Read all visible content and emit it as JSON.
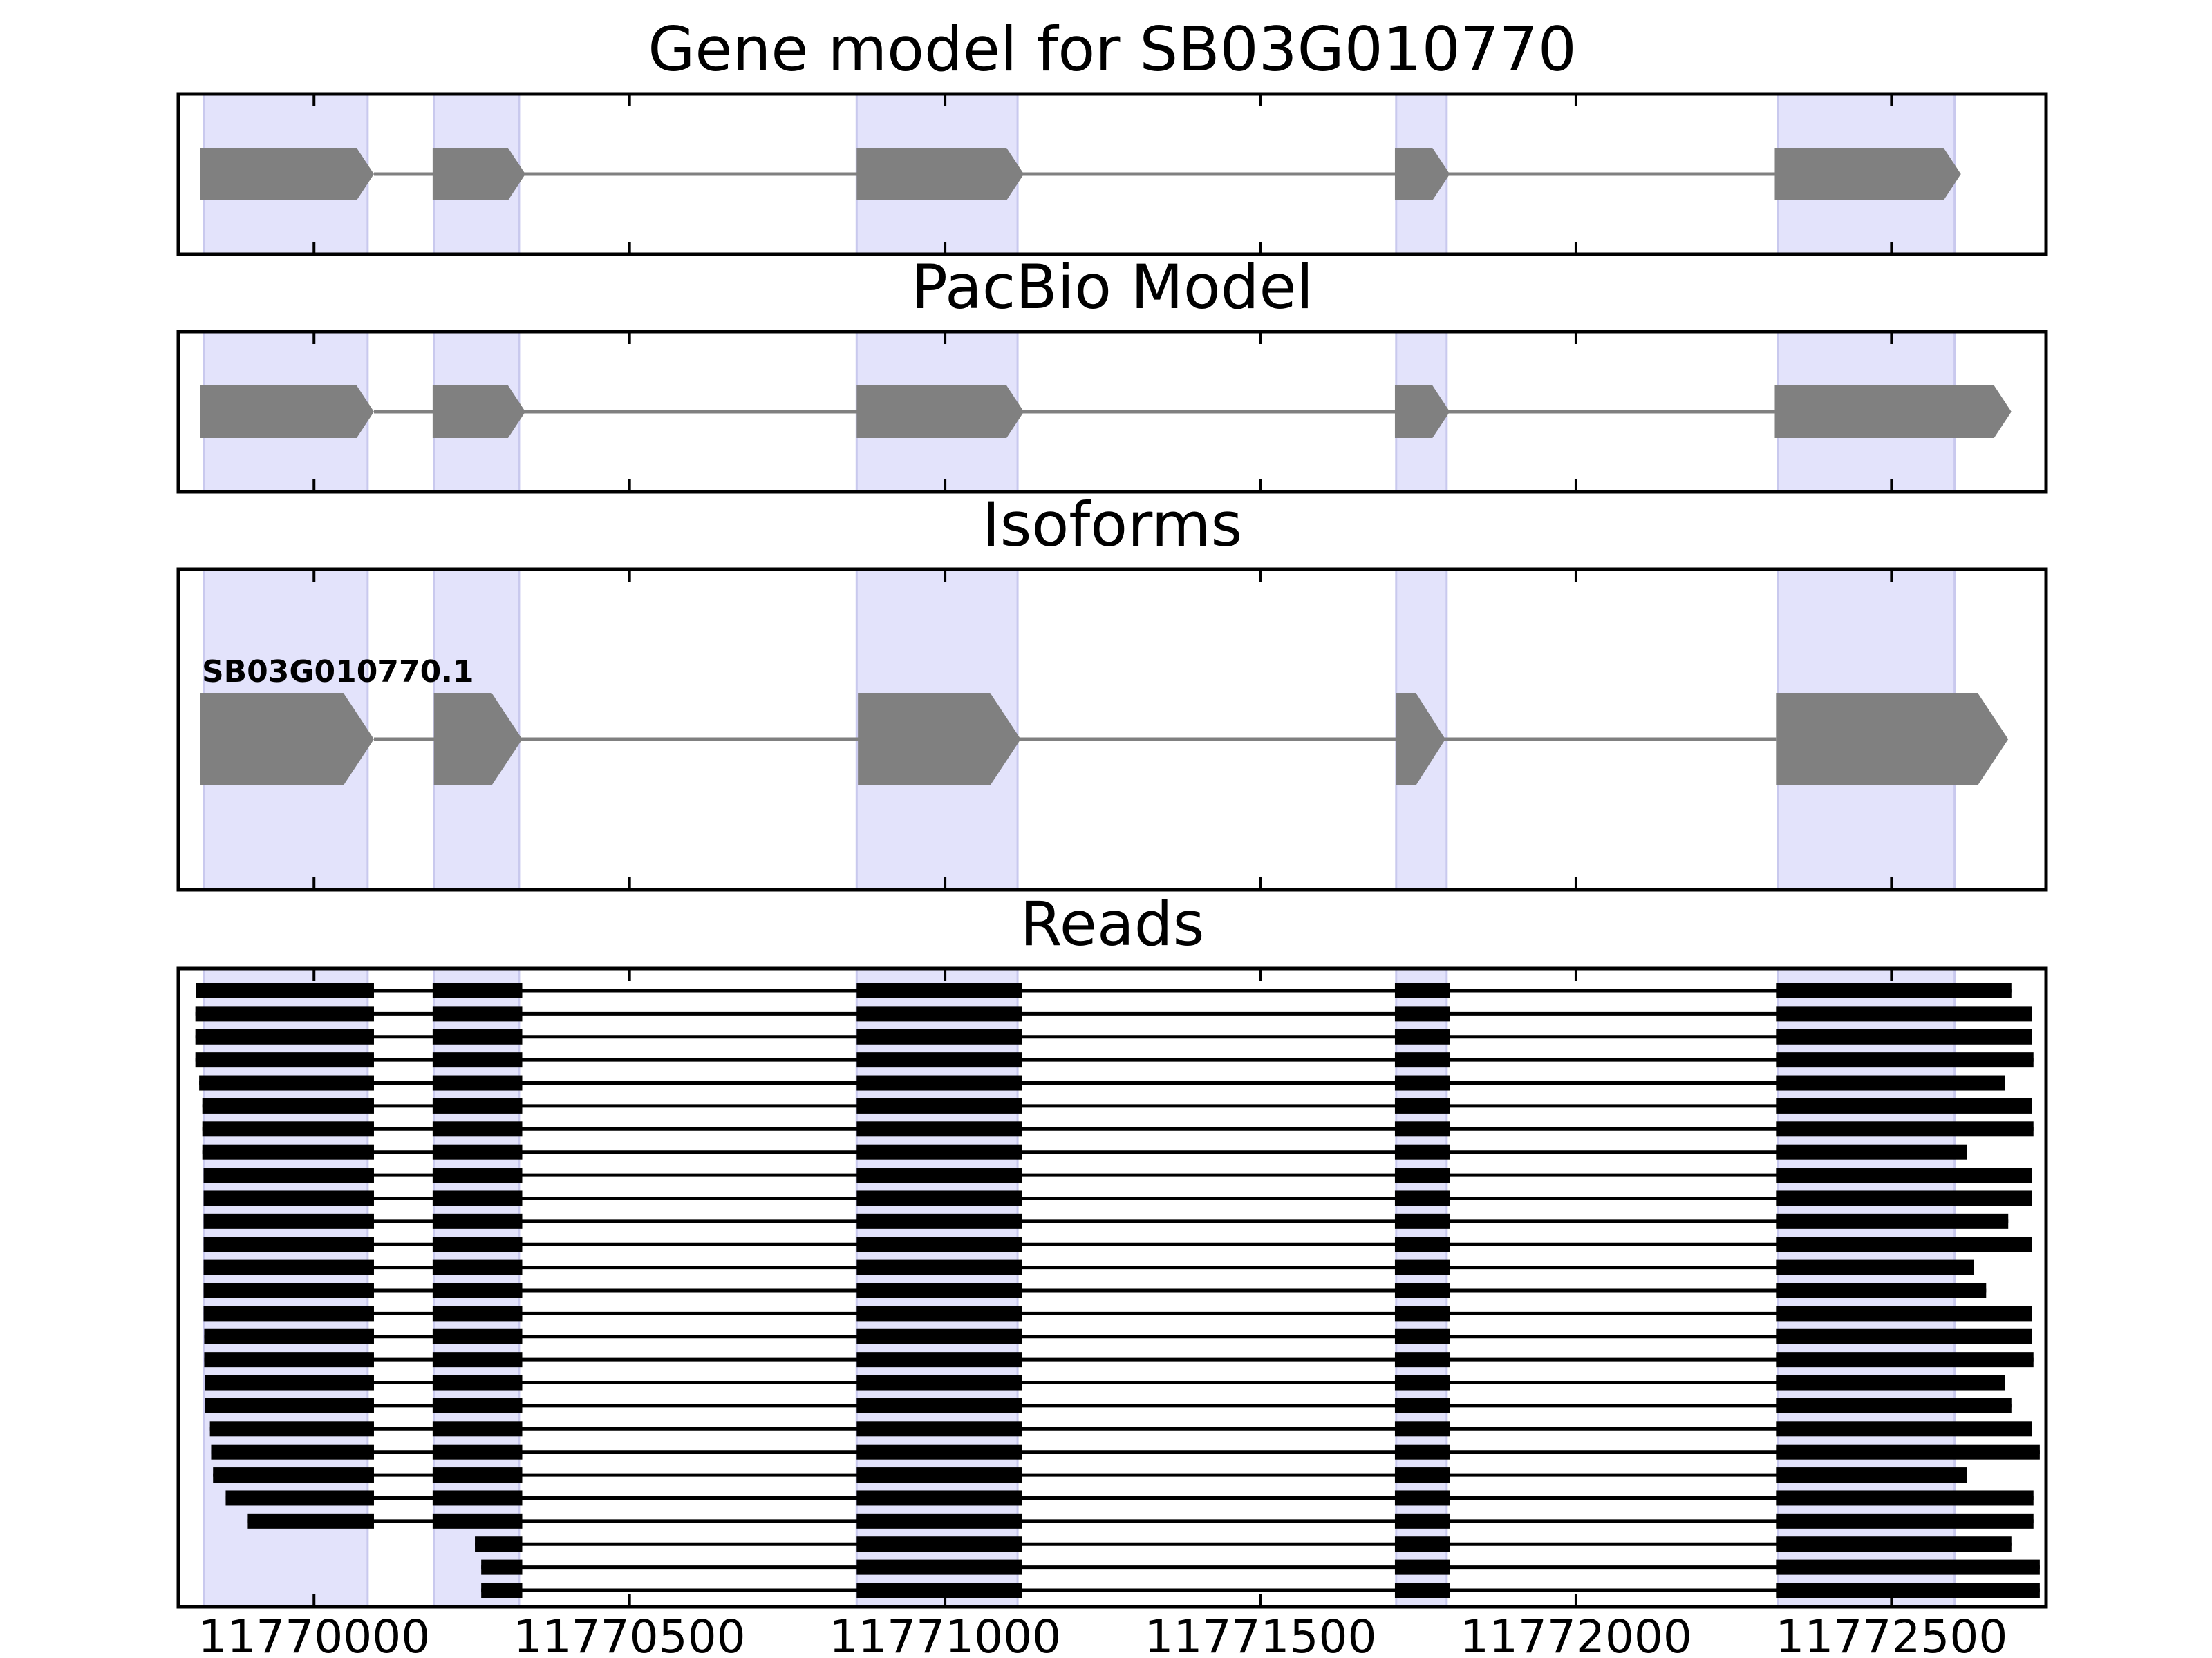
{
  "chart_data": {
    "type": "gene-structure",
    "xlim": [
      11769785,
      11772745
    ],
    "xticks": [
      11770000,
      11770500,
      11771000,
      11771500,
      11772000,
      11772500
    ],
    "x_tick_labels": [
      "11770000",
      "11770500",
      "11771000",
      "11771500",
      "11772000",
      "11772500"
    ],
    "highlight_color": "#e3e3fb",
    "feature_color": "#808080",
    "read_color": "#000000",
    "highlight_regions": [
      [
        11769825,
        11770085
      ],
      [
        11770190,
        11770325
      ],
      [
        11770860,
        11771115
      ],
      [
        11771715,
        11771795
      ],
      [
        11772320,
        11772600
      ]
    ],
    "panels": [
      {
        "title": "Gene model for SB03G010770",
        "strand": "+",
        "exons": [
          [
            11769820,
            11770095
          ],
          [
            11770188,
            11770335
          ],
          [
            11770860,
            11771125
          ],
          [
            11771713,
            11771800
          ],
          [
            11772315,
            11772610
          ]
        ]
      },
      {
        "title": "PacBio Model",
        "strand": "+",
        "exons": [
          [
            11769820,
            11770095
          ],
          [
            11770188,
            11770335
          ],
          [
            11770860,
            11771125
          ],
          [
            11771713,
            11771800
          ],
          [
            11772315,
            11772690
          ]
        ]
      },
      {
        "title": "Isoforms",
        "strand": "+",
        "isoform_label": "SB03G010770.1",
        "exons": [
          [
            11769820,
            11770095
          ],
          [
            11770190,
            11770330
          ],
          [
            11770862,
            11771120
          ],
          [
            11771715,
            11771793
          ],
          [
            11772317,
            11772685
          ]
        ]
      }
    ],
    "reads_title": "Reads",
    "reads": [
      [
        11769813,
        11772690
      ],
      [
        11769812,
        11772722
      ],
      [
        11769812,
        11772722
      ],
      [
        11769812,
        11772725
      ],
      [
        11769818,
        11772680
      ],
      [
        11769823,
        11772722
      ],
      [
        11769823,
        11772725
      ],
      [
        11769823,
        11772620
      ],
      [
        11769825,
        11772722
      ],
      [
        11769825,
        11772722
      ],
      [
        11769825,
        11772685
      ],
      [
        11769825,
        11772722
      ],
      [
        11769825,
        11772630
      ],
      [
        11769825,
        11772650
      ],
      [
        11769825,
        11772722
      ],
      [
        11769826,
        11772722
      ],
      [
        11769826,
        11772725
      ],
      [
        11769827,
        11772680
      ],
      [
        11769827,
        11772690
      ],
      [
        11769835,
        11772722
      ],
      [
        11769837,
        11772735
      ],
      [
        11769840,
        11772620
      ],
      [
        11769860,
        11772725
      ],
      [
        11769895,
        11772725
      ],
      [
        11770255,
        11772690
      ],
      [
        11770265,
        11772735
      ],
      [
        11770265,
        11772735
      ]
    ],
    "read_exons": [
      [
        11770095,
        11770188
      ],
      [
        11770330,
        11770860
      ],
      [
        11771122,
        11771713
      ],
      [
        11771800,
        11772317
      ]
    ]
  }
}
